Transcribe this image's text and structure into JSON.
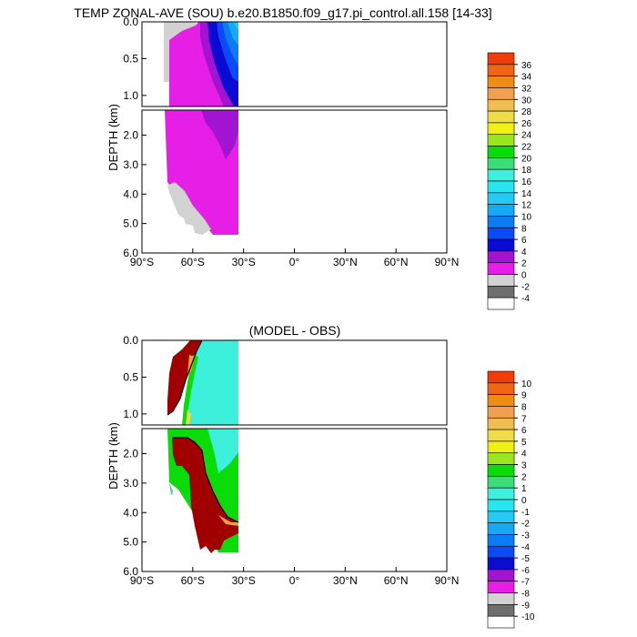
{
  "colors": {
    "top_levels": [
      "#ffffff",
      "#6e6e6e",
      "#d2d2d2",
      "#e61ee6",
      "#a014d2",
      "#0a0ad2",
      "#0a4bf5",
      "#0a7df5",
      "#14aaf5",
      "#28c8f5",
      "#28e6f0",
      "#3cf0dc",
      "#3cdc78",
      "#0adc0a",
      "#9be61e",
      "#f0f014",
      "#f0dc46",
      "#f0be50",
      "#f0a050",
      "#f08c14",
      "#f06414",
      "#f03c0a",
      "#e61e0a",
      "#be0a0a",
      "#a00000"
    ],
    "diff_levels": [
      "#ffffff",
      "#6e6e6e",
      "#d2d2d2",
      "#e61ee6",
      "#a014d2",
      "#0a0ad2",
      "#0a4bf5",
      "#0a7df5",
      "#14aaf5",
      "#28c8f5",
      "#28e6f0",
      "#3cf0dc",
      "#3cdc78",
      "#0adc0a",
      "#9be61e",
      "#f0f014",
      "#f0dc46",
      "#f0be50",
      "#f0a050",
      "#f08c14",
      "#f06414",
      "#f03c0a",
      "#e61e0a",
      "#be0a0a",
      "#a00000"
    ]
  },
  "chart_data": [
    {
      "type": "heatmap",
      "title": "TEMP ZONAL-AVE (SOU) b.e20.B1850.f09_g17.pi_control.all.158 [14-33]",
      "xlabel": "",
      "ylabel": "DEPTH (km)",
      "x_ticks": [
        "90°S",
        "60°S",
        "30°S",
        "0°",
        "30°N",
        "60°N",
        "90°N"
      ],
      "y_ticks_upper": [
        "0.0",
        "0.5",
        "1.0"
      ],
      "y_ticks_lower": [
        "2.0",
        "3.0",
        "4.0",
        "5.0",
        "6.0"
      ],
      "ylim_upper": [
        0,
        1.15
      ],
      "ylim_lower": [
        1.15,
        6.0
      ],
      "xlim": [
        -90,
        90
      ],
      "data_lat_range": [
        -78,
        -33
      ],
      "colorbar_labels": [
        "36",
        "34",
        "32",
        "30",
        "28",
        "26",
        "24",
        "22",
        "20",
        "18",
        "16",
        "14",
        "12",
        "10",
        "8",
        "6",
        "4",
        "2",
        "0",
        "-2",
        "-4"
      ],
      "colorbar_levels": [
        -4,
        -2,
        0,
        1,
        2,
        3,
        4,
        5,
        6,
        8,
        10,
        12,
        14,
        16,
        18,
        20,
        22,
        24,
        26,
        28,
        30,
        32,
        34,
        36
      ],
      "regions_description_values": {
        "surface_max_temp_near_30S": 6,
        "deep_water_temp": 0,
        "antarctic_shelf_temp": -2
      }
    },
    {
      "type": "heatmap",
      "title": "(MODEL - OBS)",
      "xlabel": "",
      "ylabel": "DEPTH (km)",
      "x_ticks": [
        "90°S",
        "60°S",
        "30°S",
        "0°",
        "30°N",
        "60°N",
        "90°N"
      ],
      "y_ticks_upper": [
        "0.0",
        "0.5",
        "1.0"
      ],
      "y_ticks_lower": [
        "2.0",
        "3.0",
        "4.0",
        "5.0",
        "6.0"
      ],
      "ylim_upper": [
        0,
        1.15
      ],
      "ylim_lower": [
        1.15,
        6.0
      ],
      "xlim": [
        -90,
        90
      ],
      "data_lat_range": [
        -78,
        -33
      ],
      "colorbar_labels": [
        "10",
        "9",
        "8",
        "7",
        "6",
        "5",
        "4",
        "3",
        "2",
        "1",
        "0",
        "-1",
        "-2",
        "-3",
        "-4",
        "-5",
        "-6",
        "-7",
        "-8",
        "-9",
        "-10"
      ],
      "colorbar_levels": [
        -10,
        -9,
        -8,
        -7,
        -6,
        -5,
        -4,
        -3,
        -2,
        -1,
        0,
        1,
        2,
        3,
        4,
        5,
        6,
        7,
        8,
        9,
        10
      ]
    }
  ]
}
